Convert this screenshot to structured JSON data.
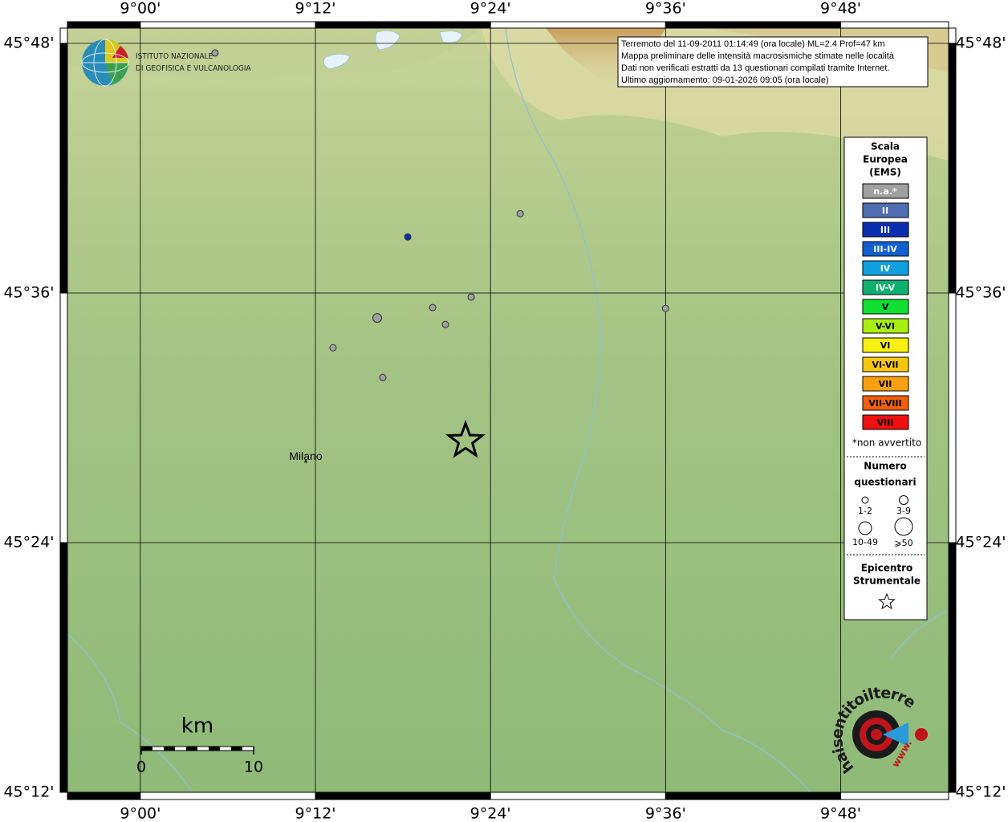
{
  "header": {
    "institute": [
      "ISTITUTO NAZIONALE",
      "DI GEOFISICA E VULCANOLOGIA"
    ]
  },
  "info": [
    "Terremoto del 11-09-2011 01:14:49 (ora locale) ML=2.4 Prof=47 km",
    "Mappa preliminare delle intensità macrosismiche stimate nelle località",
    "Dati non verificati estratti da 13 questionari compilati tramite Internet.",
    "Ultimo aggiornamento: 09-01-2026 09:05 (ora locale)"
  ],
  "map": {
    "xlim": [
      8.9167,
      9.9233
    ],
    "ylim": [
      45.2,
      45.8122
    ],
    "xticks": [
      {
        "value": 9.0,
        "label": "9°00'"
      },
      {
        "value": 9.2,
        "label": "9°12'"
      },
      {
        "value": 9.4,
        "label": "9°24'"
      },
      {
        "value": 9.6,
        "label": "9°36'"
      },
      {
        "value": 9.8,
        "label": "9°48'"
      }
    ],
    "yticks": [
      {
        "value": 45.2,
        "label": "45°12'"
      },
      {
        "value": 45.4,
        "label": "45°24'"
      },
      {
        "value": 45.6,
        "label": "45°36'"
      },
      {
        "value": 45.8,
        "label": "45°48'"
      }
    ],
    "points": [
      {
        "lon": 9.0853,
        "lat": 45.7923,
        "intensity": "n.a.*",
        "size": "1-2"
      },
      {
        "lon": 9.4339,
        "lat": 45.6635,
        "intensity": "n.a.*",
        "size": "1-2"
      },
      {
        "lon": 9.3055,
        "lat": 45.6449,
        "intensity": "III",
        "size": "1-2"
      },
      {
        "lon": 9.3779,
        "lat": 45.5967,
        "intensity": "n.a.*",
        "size": "1-2"
      },
      {
        "lon": 9.3339,
        "lat": 45.5883,
        "intensity": "n.a.*",
        "size": "1-2"
      },
      {
        "lon": 9.2706,
        "lat": 45.58,
        "intensity": "n.a.*",
        "size": "3-9"
      },
      {
        "lon": 9.3485,
        "lat": 45.5748,
        "intensity": "n.a.*",
        "size": "1-2"
      },
      {
        "lon": 9.6,
        "lat": 45.5877,
        "intensity": "n.a.*",
        "size": "1-2"
      },
      {
        "lon": 9.2201,
        "lat": 45.5561,
        "intensity": "n.a.*",
        "size": "1-2"
      },
      {
        "lon": 9.277,
        "lat": 45.5323,
        "intensity": "n.a.*",
        "size": "1-2"
      }
    ],
    "epicenter": {
      "lon": 9.3715,
      "lat": 45.4815
    },
    "places": [
      {
        "name": "Milano",
        "lon": 9.189,
        "lat": 45.4654
      }
    ]
  },
  "legend": {
    "title": [
      "Scala",
      "Europea",
      "(EMS)"
    ],
    "classes": [
      {
        "label": "n.a.*",
        "color": "#a0a0a0"
      },
      {
        "label": "II",
        "color": "#4f6db0"
      },
      {
        "label": "III",
        "color": "#0a2eb0"
      },
      {
        "label": "III-IV",
        "color": "#1060d0"
      },
      {
        "label": "IV",
        "color": "#10a0e0"
      },
      {
        "label": "IV-V",
        "color": "#10b070"
      },
      {
        "label": "V",
        "color": "#10e030"
      },
      {
        "label": "V-VI",
        "color": "#a8f010"
      },
      {
        "label": "VI",
        "color": "#f8f010"
      },
      {
        "label": "VI-VII",
        "color": "#f8c810"
      },
      {
        "label": "VII",
        "color": "#f8a010"
      },
      {
        "label": "VII-VIII",
        "color": "#f06010"
      },
      {
        "label": "VIII",
        "color": "#f01010"
      }
    ],
    "note": "*non avvertito",
    "size_title": [
      "Numero",
      "questionari"
    ],
    "sizes": [
      "1-2",
      "3-9",
      "10-49",
      "⩾50"
    ],
    "epicenter_title": [
      "Epicentro",
      "Strumentale"
    ]
  },
  "scale": {
    "unit": "km",
    "ticks": [
      0,
      10
    ]
  },
  "logo": {
    "text": "haisentitoilterremoto.it",
    "www": "www."
  }
}
